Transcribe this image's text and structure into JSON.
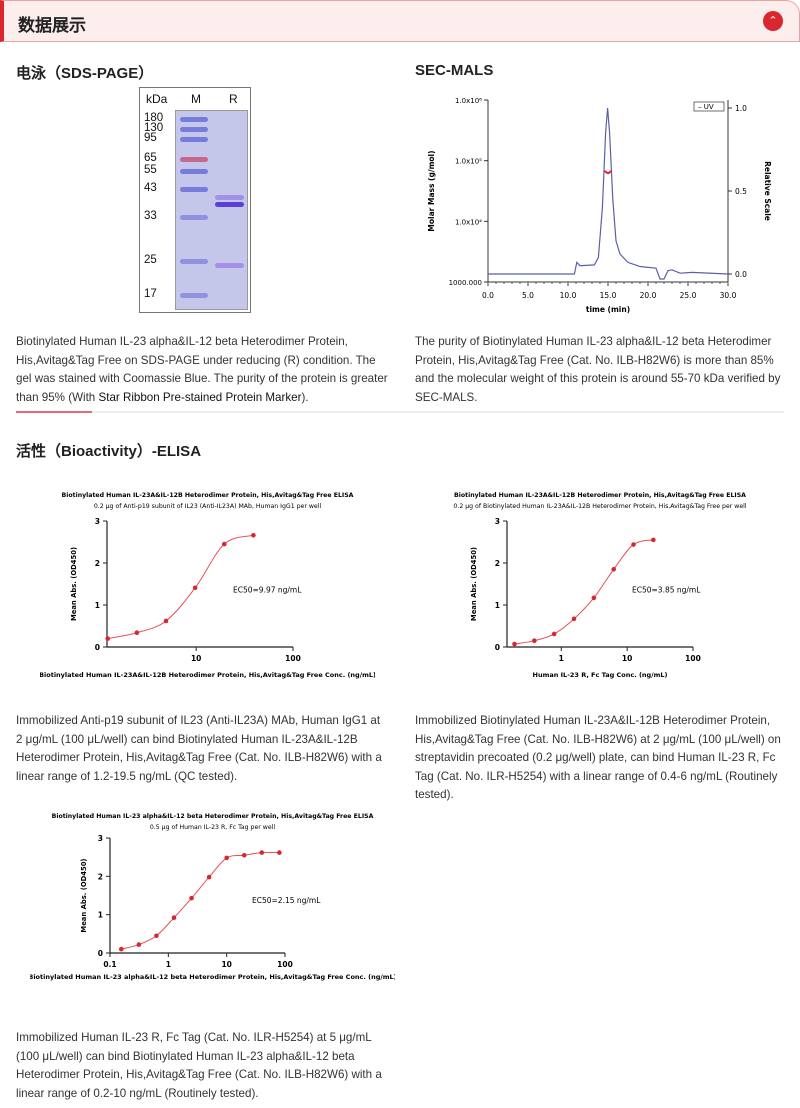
{
  "header": {
    "title": "数据展示",
    "collapse_icon": "chevron-up-icon",
    "accent": "#d9262f"
  },
  "sds": {
    "title": "电泳（SDS-PAGE）",
    "gel": {
      "unit": "kDa",
      "lanes": [
        "M",
        "R"
      ],
      "markers": [
        "180",
        "130",
        "95",
        "65",
        "55",
        "43",
        "33",
        "25",
        "17"
      ]
    },
    "caption_pre": "Biotinylated Human IL-23 alpha&IL-12 beta Heterodimer Protein, His,Avitag&Tag Free on SDS-PAGE under reducing (R) condition. The gel was stained with Coomassie Blue. The purity of the protein is greater than 95% (With ",
    "caption_link": "Star Ribbon Pre-stained Protein Marker",
    "caption_post": ")."
  },
  "secmals": {
    "title": "SEC-MALS",
    "caption": "The purity of Biotinylated Human IL-23 alpha&IL-12 beta Heterodimer Protein, His,Avitag&Tag Free (Cat. No. ILB-H82W6) is more than 85% and the molecular weight of this protein is around 55-70 kDa verified by SEC-MALS."
  },
  "bioactivity": {
    "title": "活性（Bioactivity）-ELISA",
    "captions": [
      "Immobilized Anti-p19 subunit of IL23 (Anti-IL23A) MAb, Human IgG1 at 2 μg/mL (100 μL/well) can bind Biotinylated Human IL-23A&IL-12B Heterodimer Protein, His,Avitag&Tag Free (Cat. No. ILB-H82W6) with a linear range of 1.2-19.5 ng/mL (QC tested).",
      "Immobilized Biotinylated Human IL-23A&IL-12B Heterodimer Protein, His,Avitag&Tag Free (Cat. No. ILB-H82W6) at 2 μg/mL (100 μL/well) on streptavidin precoated (0.2 μg/well) plate, can bind Human IL-23 R, Fc Tag (Cat. No. ILR-H5254) with a linear range of 0.4-6 ng/mL (Routinely tested).",
      "Immobilized Human IL-23 R, Fc Tag (Cat. No. ILR-H5254) at 5 μg/mL (100 μL/well) can bind Biotinylated Human IL-23 alpha&IL-12 beta Heterodimer Protein, His,Avitag&Tag Free (Cat. No. ILB-H82W6) with a linear range of 0.2-10 ng/mL (Routinely tested)."
    ]
  },
  "chart_data": [
    {
      "type": "line",
      "title": "",
      "xlabel": "time (min)",
      "ylabel": "Molar Mass (g/mol)",
      "y2label": "Relative Scale",
      "xlim": [
        0,
        30
      ],
      "xticks": [
        "0.0",
        "5.0",
        "10.0",
        "15.0",
        "20.0",
        "25.0",
        "30.0"
      ],
      "ylim": [
        1000,
        1000000
      ],
      "yscale": "log",
      "yticks": [
        "1000.000",
        "1.0x10⁴",
        "1.0x10⁵",
        "1.0x10⁶"
      ],
      "y2lim": [
        0,
        1
      ],
      "y2ticks": [
        "0.0",
        "0.5",
        "1.0"
      ],
      "legend": "top-right",
      "legend_entries": [
        "UV"
      ],
      "series": [
        {
          "name": "UV",
          "axis": "right",
          "color": "#5b5fa8",
          "x": [
            0,
            10.8,
            11.1,
            11.5,
            13.3,
            13.8,
            14.3,
            14.7,
            14.95,
            15.2,
            15.6,
            16,
            16.5,
            17.5,
            19,
            21,
            21.5,
            22,
            22.5,
            23,
            24,
            25.5,
            30
          ],
          "y": [
            0,
            0,
            0.07,
            0.05,
            0.055,
            0.1,
            0.4,
            0.85,
            1.0,
            0.85,
            0.45,
            0.2,
            0.12,
            0.07,
            0.045,
            0.035,
            -0.03,
            -0.03,
            0.02,
            0.025,
            0.005,
            0.01,
            0
          ]
        },
        {
          "axis": "left",
          "color": "#d9262f",
          "x": [
            14.6,
            14.8,
            15.0,
            15.2,
            15.4
          ],
          "y": [
            68000,
            64000,
            62000,
            64000,
            68000
          ]
        }
      ]
    },
    {
      "type": "scatter",
      "title": "Biotinylated Human IL-23A&IL-12B Heterodimer Protein, His,Avitag&Tag Free ELISA",
      "subtitle": "0.2 μg of Anti-p19 subunit of IL23 (Anti-IL23A) MAb, Human IgG1 per well",
      "xlabel": "Biotinylated Human IL-23A&IL-12B Heterodimer Protein, His,Avitag&Tag Free Conc. (ng/mL)",
      "ylabel": "Mean Abs. (OD450)",
      "xscale": "log",
      "xlim": [
        1.2,
        100
      ],
      "xticks": [
        "10",
        "100"
      ],
      "ylim": [
        0,
        3
      ],
      "yticks": [
        "0",
        "1",
        "2",
        "3"
      ],
      "annotation": "EC50=9.97 ng/mL",
      "color": "#d9262f",
      "x": [
        1.22,
        2.44,
        4.88,
        9.77,
        19.5,
        39
      ],
      "y": [
        0.2,
        0.34,
        0.62,
        1.41,
        2.45,
        2.66
      ]
    },
    {
      "type": "scatter",
      "title": "Biotinylated Human IL-23A&IL-12B Heterodimer Protein, His,Avitag&Tag Free ELISA",
      "subtitle": "0.2 μg of Biotinylated Human IL-23A&IL-12B Heterodimer Protein, His,Avitag&Tag Free per well",
      "xlabel": "Human IL-23 R, Fc Tag Conc. (ng/mL)",
      "ylabel": "Mean Abs. (OD450)",
      "xscale": "log",
      "xlim": [
        0.15,
        100
      ],
      "xticks": [
        "1",
        "10",
        "100"
      ],
      "ylim": [
        0,
        3
      ],
      "yticks": [
        "0",
        "1",
        "2",
        "3"
      ],
      "annotation": "EC50=3.85 ng/mL",
      "color": "#d9262f",
      "x": [
        0.195,
        0.39,
        0.78,
        1.56,
        3.125,
        6.25,
        12.5,
        25
      ],
      "y": [
        0.07,
        0.15,
        0.31,
        0.67,
        1.17,
        1.85,
        2.44,
        2.55
      ]
    },
    {
      "type": "scatter",
      "title": "Biotinylated Human IL-23 alpha&IL-12 beta Heterodimer Protein, His,Avitag&Tag Free ELISA",
      "subtitle": "0.5 μg of Human IL-23 R, Fc Tag per well",
      "xlabel": "Biotinylated Human IL-23 alpha&IL-12 beta Heterodimer Protein, His,Avitag&Tag Free Conc. (ng/mL)",
      "ylabel": "Mean Abs. (OD450)",
      "xscale": "log",
      "xlim": [
        0.1,
        100
      ],
      "xticks": [
        "0.1",
        "1",
        "10",
        "100"
      ],
      "ylim": [
        0,
        3
      ],
      "yticks": [
        "0",
        "1",
        "2",
        "3"
      ],
      "annotation": "EC50=2.15 ng/mL",
      "color": "#d9262f",
      "x": [
        0.156,
        0.3125,
        0.625,
        1.25,
        2.5,
        5,
        10,
        20,
        40,
        80
      ],
      "y": [
        0.1,
        0.22,
        0.45,
        0.92,
        1.43,
        1.98,
        2.48,
        2.55,
        2.62,
        2.62
      ]
    }
  ]
}
